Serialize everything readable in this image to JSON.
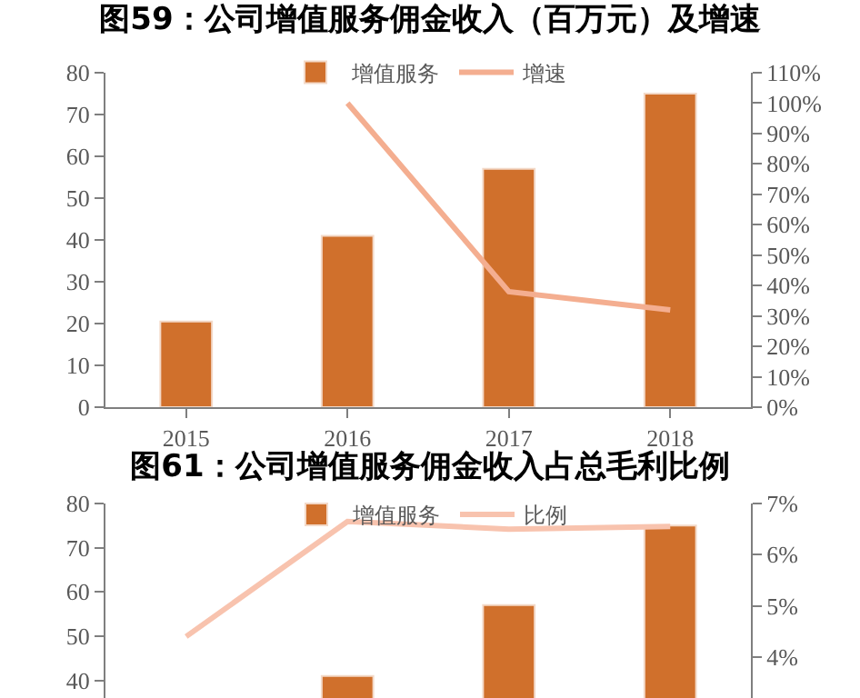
{
  "chart_data": [
    {
      "type": "bar",
      "title": "图59：公司增值服务佣金收入（百万元）及增速",
      "categories": [
        "2015",
        "2016",
        "2017",
        "2018"
      ],
      "series": [
        {
          "name": "增值服务",
          "color": "#d0702c",
          "values": [
            20.5,
            41,
            57,
            75
          ]
        },
        {
          "name": "增速",
          "type": "line",
          "axis": "y2",
          "color": "#f4ae90",
          "values": [
            null,
            100,
            38,
            32
          ]
        }
      ],
      "ylim": [
        0,
        80
      ],
      "yticks": [
        0,
        10,
        20,
        30,
        40,
        50,
        60,
        70,
        80
      ],
      "y2lim": [
        0,
        110
      ],
      "y2ticks": [
        {
          "value": 0,
          "label": "0%"
        },
        {
          "value": 10,
          "label": "10%"
        },
        {
          "value": 20,
          "label": "20%"
        },
        {
          "value": 30,
          "label": "30%"
        },
        {
          "value": 40,
          "label": "40%"
        },
        {
          "value": 50,
          "label": "50%"
        },
        {
          "value": 60,
          "label": "60%"
        },
        {
          "value": 70,
          "label": "70%"
        },
        {
          "value": 80,
          "label": "80%"
        },
        {
          "value": 90,
          "label": "90%"
        },
        {
          "value": 100,
          "label": "100%"
        },
        {
          "value": 110,
          "label": "110%"
        }
      ],
      "grid": false,
      "legend": "top"
    },
    {
      "type": "bar",
      "title": "图61：公司增值服务佣金收入占总毛利比例",
      "categories": [
        null,
        null,
        null,
        null
      ],
      "series": [
        {
          "name": "增值服务",
          "color": "#d0702c",
          "values": [
            null,
            41,
            57,
            75
          ]
        },
        {
          "name": "比例",
          "type": "line",
          "axis": "y2",
          "color": "#f8c3ae",
          "values": [
            4.4,
            6.65,
            6.5,
            6.55
          ]
        }
      ],
      "ylim": [
        36,
        80
      ],
      "yticks": [
        40,
        50,
        60,
        70,
        80
      ],
      "y2lim": [
        3.2,
        7
      ],
      "y2ticks": [
        {
          "value": 4,
          "label": "4%"
        },
        {
          "value": 5,
          "label": "5%"
        },
        {
          "value": 6,
          "label": "6%"
        },
        {
          "value": 7,
          "label": "7%"
        }
      ],
      "grid": false,
      "legend": "top",
      "tick_labels": "y"
    }
  ]
}
